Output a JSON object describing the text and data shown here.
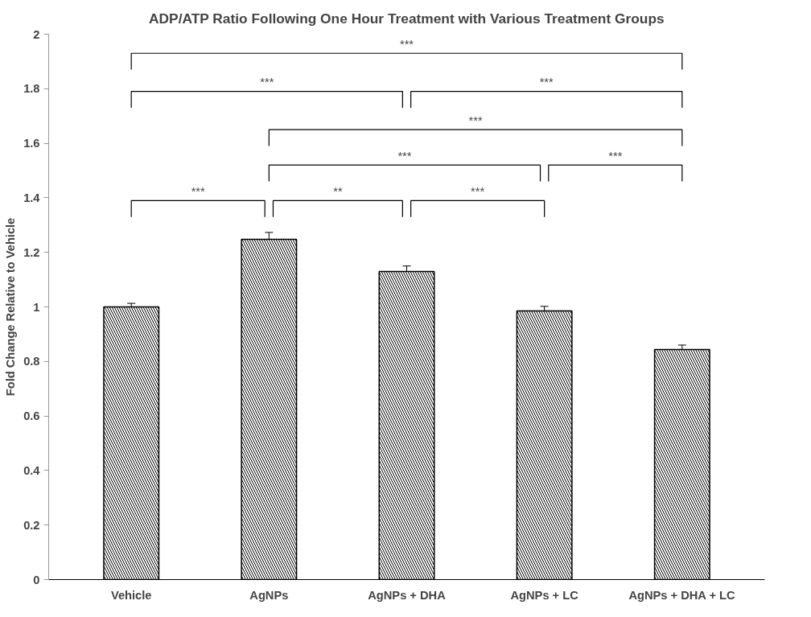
{
  "chart_data": {
    "type": "bar",
    "title": "ADP/ATP Ratio Following One Hour Treatment with Various Treatment Groups",
    "ylabel": "Fold Change Relative to Vehicle",
    "categories": [
      "Vehicle",
      "AgNPs",
      "AgNPs + DHA",
      "AgNPs + LC",
      "AgNPs + DHA + LC"
    ],
    "values": [
      1.0,
      1.248,
      1.13,
      0.985,
      0.844
    ],
    "errors": [
      0.013,
      0.025,
      0.02,
      0.017,
      0.016
    ],
    "color": "#ffffff",
    "ylim": [
      0,
      2
    ],
    "yticks": [
      0,
      0.2,
      0.4,
      0.6,
      0.8,
      1,
      1.2,
      1.4,
      1.6,
      1.8,
      2
    ],
    "grid": false,
    "annotations": [
      "***",
      "***",
      "***",
      "***",
      "***",
      "***",
      "***",
      "**",
      "***"
    ]
  }
}
